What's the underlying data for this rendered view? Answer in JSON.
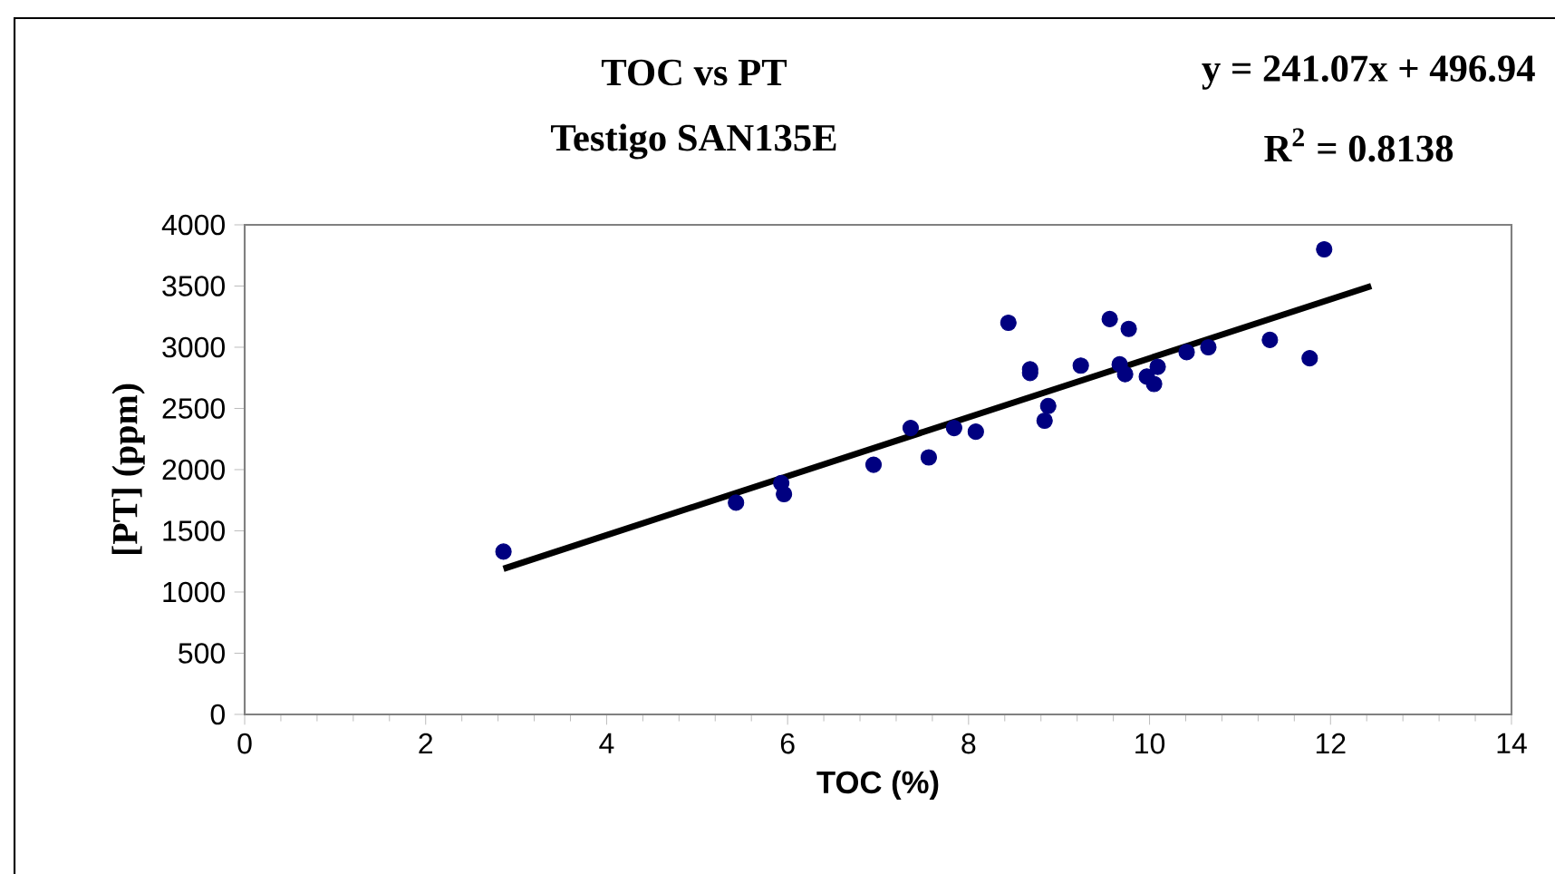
{
  "chart_data": {
    "type": "scatter",
    "title": "TOC vs PT",
    "subtitle": "Testigo SAN135E",
    "xlabel": "TOC (%)",
    "ylabel": "[PT] (ppm)",
    "annotations": [
      "y = 241.07x + 496.94",
      "R$^{2}$ = 0.8138"
    ],
    "xlim": [
      0,
      14
    ],
    "ylim": [
      0,
      4000
    ],
    "xticks": [
      0,
      2,
      4,
      6,
      8,
      10,
      12,
      14
    ],
    "yticks": [
      0,
      500,
      1000,
      1500,
      2000,
      2500,
      3000,
      3500,
      4000
    ],
    "grid": false,
    "series": [
      {
        "color": "#000080",
        "marker": "circle",
        "x": [
          2.86,
          5.43,
          5.93,
          5.96,
          6.95,
          7.36,
          7.56,
          7.84,
          8.08,
          8.44,
          8.68,
          8.68,
          8.88,
          8.84,
          9.24,
          9.56,
          9.77,
          9.67,
          9.73,
          9.97,
          10.05,
          10.09,
          10.41,
          10.65,
          11.33,
          11.77,
          11.93
        ],
        "values": [
          1330,
          1730,
          1890,
          1800,
          2040,
          2340,
          2100,
          2340,
          2310,
          3200,
          2820,
          2790,
          2520,
          2400,
          2850,
          3230,
          3150,
          2860,
          2780,
          2760,
          2700,
          2840,
          2960,
          3000,
          3060,
          2910,
          3800
        ]
      },
      {
        "type": "line",
        "color": "#000000",
        "marker": "none",
        "line_style": "solid",
        "x": [
          2.86,
          12.45
        ],
        "values": [
          1190,
          3500
        ]
      }
    ]
  }
}
